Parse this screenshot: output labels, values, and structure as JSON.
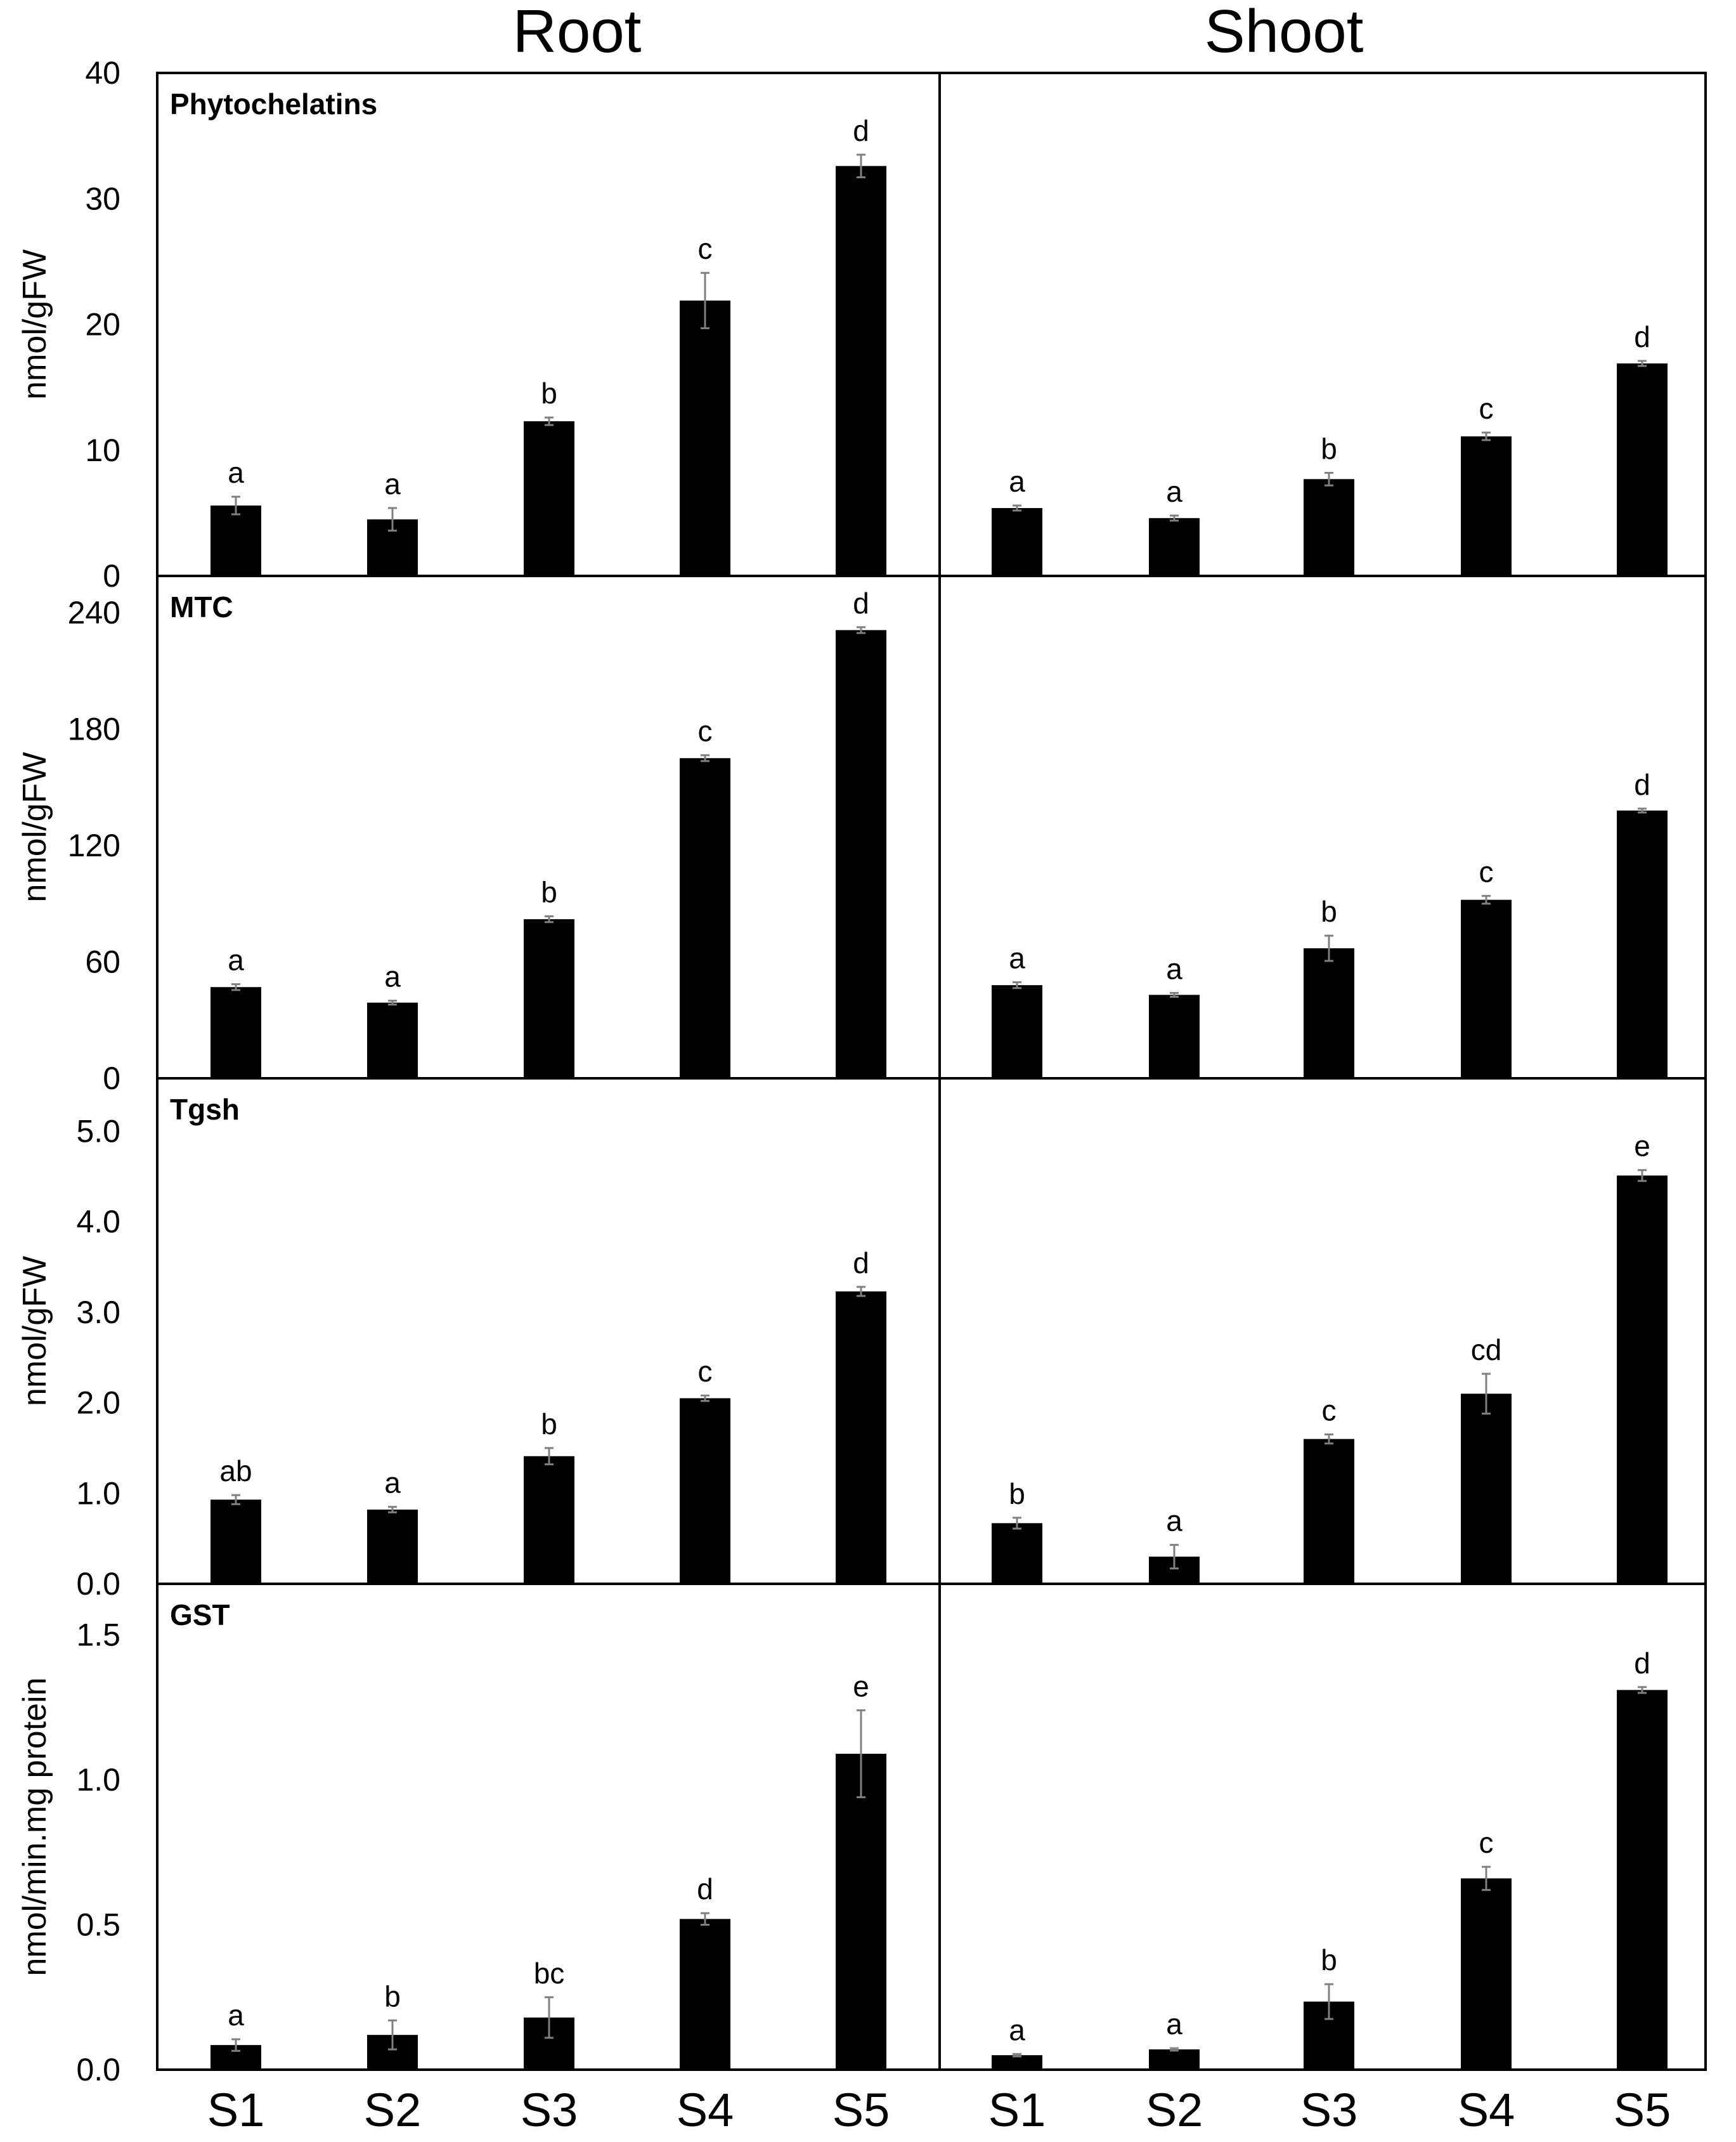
{
  "column_titles": [
    "Root",
    "Shoot"
  ],
  "x_categories": [
    "S1",
    "S2",
    "S3",
    "S4",
    "S5"
  ],
  "chart_data": [
    {
      "type": "bar",
      "title": "Phytochelatins",
      "column": "Root",
      "ylabel": "nmol/gFW",
      "categories": [
        "S1",
        "S2",
        "S3",
        "S4",
        "S5"
      ],
      "values": [
        5.6,
        4.5,
        12.3,
        21.9,
        32.6
      ],
      "errors": [
        0.7,
        0.9,
        0.3,
        2.2,
        0.9
      ],
      "letters": [
        "a",
        "a",
        "b",
        "c",
        "d"
      ],
      "ylim": [
        0,
        40
      ],
      "yticks": [
        0,
        10,
        20,
        30,
        40
      ],
      "ytick_labels": [
        "0",
        "10",
        "20",
        "30",
        "40"
      ]
    },
    {
      "type": "bar",
      "title": "",
      "column": "Shoot",
      "ylabel": "",
      "categories": [
        "S1",
        "S2",
        "S3",
        "S4",
        "S5"
      ],
      "values": [
        5.4,
        4.6,
        7.7,
        11.1,
        16.9
      ],
      "errors": [
        0.2,
        0.2,
        0.5,
        0.3,
        0.2
      ],
      "letters": [
        "a",
        "a",
        "b",
        "c",
        "d"
      ],
      "ylim": [
        0,
        40
      ],
      "yticks": [],
      "ytick_labels": []
    },
    {
      "type": "bar",
      "title": "MTC",
      "column": "Root",
      "ylabel": "nmol/gFW",
      "categories": [
        "S1",
        "S2",
        "S3",
        "S4",
        "S5"
      ],
      "values": [
        47,
        39,
        82,
        165,
        231
      ],
      "errors": [
        1.5,
        1.0,
        1.5,
        1.5,
        1.5
      ],
      "letters": [
        "a",
        "a",
        "b",
        "c",
        "d"
      ],
      "ylim": [
        0,
        255
      ],
      "yticks": [
        0,
        60,
        120,
        180,
        240
      ],
      "ytick_labels": [
        "0",
        "60",
        "120",
        "180",
        "240"
      ]
    },
    {
      "type": "bar",
      "title": "",
      "column": "Shoot",
      "ylabel": "",
      "categories": [
        "S1",
        "S2",
        "S3",
        "S4",
        "S5"
      ],
      "values": [
        48,
        43,
        67,
        92,
        138
      ],
      "errors": [
        1.5,
        1.0,
        6.5,
        2.0,
        1.0
      ],
      "letters": [
        "a",
        "a",
        "b",
        "c",
        "d"
      ],
      "ylim": [
        0,
        255
      ],
      "yticks": [],
      "ytick_labels": []
    },
    {
      "type": "bar",
      "title": "Tgsh",
      "column": "Root",
      "ylabel": "nmol/gFW",
      "categories": [
        "S1",
        "S2",
        "S3",
        "S4",
        "S5"
      ],
      "values": [
        0.93,
        0.82,
        1.41,
        2.05,
        3.23
      ],
      "errors": [
        0.05,
        0.03,
        0.09,
        0.03,
        0.05
      ],
      "letters": [
        "ab",
        "a",
        "b",
        "c",
        "d"
      ],
      "ylim": [
        0,
        5.5
      ],
      "yticks": [
        0,
        1,
        2,
        3,
        4,
        5
      ],
      "ytick_labels": [
        "0.0",
        "1.0",
        "2.0",
        "3.0",
        "4.0",
        "5.0"
      ]
    },
    {
      "type": "bar",
      "title": "",
      "column": "Shoot",
      "ylabel": "",
      "categories": [
        "S1",
        "S2",
        "S3",
        "S4",
        "S5"
      ],
      "values": [
        0.67,
        0.3,
        1.6,
        2.1,
        4.51
      ],
      "errors": [
        0.06,
        0.13,
        0.05,
        0.22,
        0.06
      ],
      "letters": [
        "b",
        "a",
        "c",
        "cd",
        "e"
      ],
      "ylim": [
        0,
        5.5
      ],
      "yticks": [],
      "ytick_labels": []
    },
    {
      "type": "bar",
      "title": "GST",
      "column": "Root",
      "ylabel": "nmol/min.mg protein",
      "categories": [
        "S1",
        "S2",
        "S3",
        "S4",
        "S5"
      ],
      "values": [
        0.085,
        0.12,
        0.18,
        0.52,
        1.09
      ],
      "errors": [
        0.02,
        0.05,
        0.07,
        0.02,
        0.15
      ],
      "letters": [
        "a",
        "b",
        "bc",
        "d",
        "e"
      ],
      "ylim": [
        0,
        1.65
      ],
      "yticks": [
        0,
        0.5,
        1,
        1.5
      ],
      "ytick_labels": [
        "0.0",
        "0.5",
        "1.0",
        "1.5"
      ]
    },
    {
      "type": "bar",
      "title": "",
      "column": "Shoot",
      "ylabel": "",
      "categories": [
        "S1",
        "S2",
        "S3",
        "S4",
        "S5"
      ],
      "values": [
        0.05,
        0.07,
        0.235,
        0.66,
        1.31
      ],
      "errors": [
        0.004,
        0.004,
        0.06,
        0.04,
        0.01
      ],
      "letters": [
        "a",
        "a",
        "b",
        "c",
        "d"
      ],
      "ylim": [
        0,
        1.65
      ],
      "yticks": [],
      "ytick_labels": []
    }
  ]
}
